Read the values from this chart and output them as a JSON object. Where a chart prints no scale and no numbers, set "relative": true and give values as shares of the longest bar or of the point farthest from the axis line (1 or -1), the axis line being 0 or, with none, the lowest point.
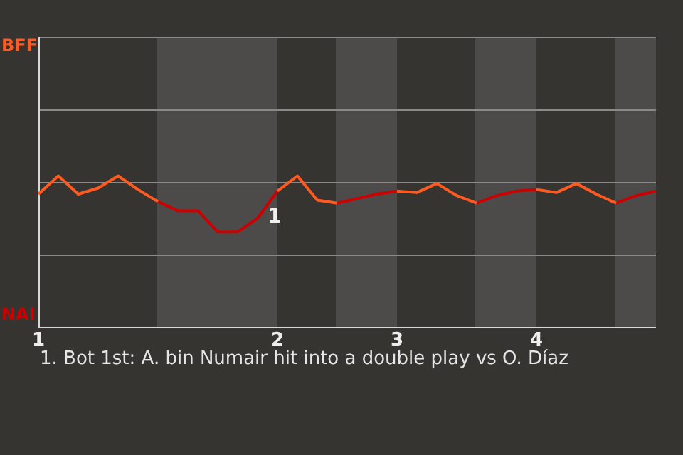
{
  "chart_data": {
    "type": "line",
    "relative": true,
    "categories": [
      "1",
      null,
      null,
      null,
      null,
      null,
      null,
      null,
      null,
      null,
      null,
      null,
      "2",
      null,
      null,
      null,
      null,
      null,
      "3",
      null,
      null,
      null,
      null,
      null,
      null,
      "4",
      null,
      null,
      null,
      null,
      null,
      null
    ],
    "series": [
      {
        "color": "#ff5a1f",
        "values": [
          0.88,
          1.0,
          0.88,
          0.92,
          1.0,
          0.91,
          0.83,
          null,
          null,
          null,
          null,
          null,
          0.9,
          1.0,
          0.84,
          0.82,
          null,
          null,
          0.9,
          0.89,
          0.95,
          0.87,
          0.82,
          null,
          null,
          0.91,
          0.89,
          0.95,
          0.88,
          0.82,
          null,
          null
        ]
      },
      {
        "color": "#cc0000",
        "values": [
          null,
          null,
          null,
          null,
          null,
          null,
          0.83,
          0.77,
          0.77,
          0.63,
          0.63,
          0.72,
          0.9,
          null,
          null,
          0.82,
          0.85,
          0.88,
          0.9,
          null,
          null,
          null,
          0.82,
          0.87,
          0.9,
          0.91,
          null,
          null,
          null,
          0.82,
          0.87,
          0.9
        ]
      }
    ],
    "ref_lines": [
      {
        "axis": "y",
        "value": 0.48,
        "color": "#8c8a88"
      },
      {
        "axis": "y",
        "value": 0.96,
        "color": "#8c8a88"
      },
      {
        "axis": "y",
        "value": 1.44,
        "color": "#8c8a88"
      }
    ],
    "legend": false,
    "marker": "none",
    "line_style": "solid",
    "annotations": [
      "BFF",
      "NAI",
      "1",
      "1. Bot 1st: A. bin Numair hit into a double play vs O. Díaz"
    ]
  }
}
